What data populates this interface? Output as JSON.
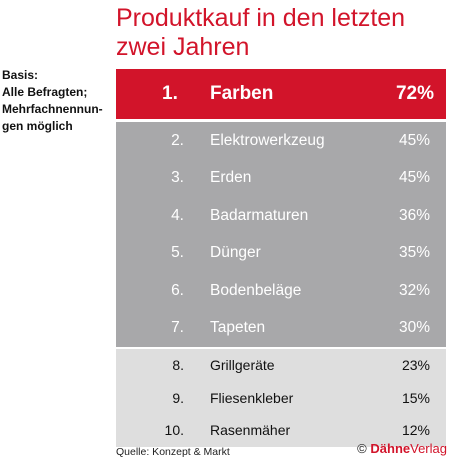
{
  "chart_data": {
    "type": "table",
    "title_lines": [
      "Produktkauf in den letzten",
      "zwei Jahren"
    ],
    "basis_lines": [
      "Basis:",
      "Alle Befragten;",
      "Mehrfachnennun-",
      "gen möglich"
    ],
    "rows": [
      {
        "rank": "1.",
        "name": "Farben",
        "value": "72%"
      },
      {
        "rank": "2.",
        "name": "Elektrowerkzeug",
        "value": "45%"
      },
      {
        "rank": "3.",
        "name": "Erden",
        "value": "45%"
      },
      {
        "rank": "4.",
        "name": "Badarmaturen",
        "value": "36%"
      },
      {
        "rank": "5.",
        "name": "Dünger",
        "value": "35%"
      },
      {
        "rank": "6.",
        "name": "Bodenbeläge",
        "value": "32%"
      },
      {
        "rank": "7.",
        "name": "Tapeten",
        "value": "30%"
      },
      {
        "rank": "8.",
        "name": "Grillgeräte",
        "value": "23%"
      },
      {
        "rank": "9.",
        "name": "Fliesenkleber",
        "value": "15%"
      },
      {
        "rank": "10.",
        "name": "Rasenmäher",
        "value": "12%"
      }
    ],
    "source": "Quelle: Konzept & Markt",
    "copyright": {
      "symbol": "©",
      "brand": "Dähne",
      "suffix": "Verlag"
    }
  },
  "colors": {
    "accent": "#d2142a",
    "mid_band": "#a8a8aa",
    "low_band": "#dedede"
  }
}
